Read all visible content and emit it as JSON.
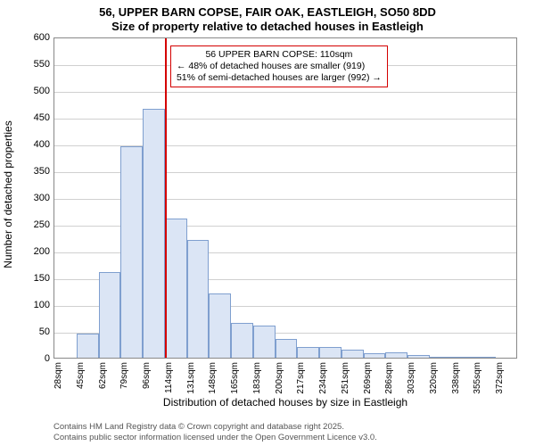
{
  "title_line1": "56, UPPER BARN COPSE, FAIR OAK, EASTLEIGH, SO50 8DD",
  "title_line2": "Size of property relative to detached houses in Eastleigh",
  "yaxis_title": "Number of detached properties",
  "xaxis_title": "Distribution of detached houses by size in Eastleigh",
  "attribution_line1": "Contains HM Land Registry data © Crown copyright and database right 2025.",
  "attribution_line2": "Contains public sector information licensed under the Open Government Licence v3.0.",
  "chart": {
    "type": "histogram",
    "ylim_max": 600,
    "ytick_step": 50,
    "grid_color": "#d0d0d0",
    "bar_fill": "#dbe5f5",
    "bar_border": "#7f9fcf",
    "bar_border_width": 1,
    "plot_border_color": "#888888",
    "marker_color": "#d40000",
    "annotation_border": "#d40000",
    "x_labels": [
      "28sqm",
      "45sqm",
      "62sqm",
      "79sqm",
      "96sqm",
      "114sqm",
      "131sqm",
      "148sqm",
      "165sqm",
      "183sqm",
      "200sqm",
      "217sqm",
      "234sqm",
      "251sqm",
      "269sqm",
      "286sqm",
      "303sqm",
      "320sqm",
      "338sqm",
      "355sqm",
      "372sqm"
    ],
    "bars": [
      {
        "value": 0
      },
      {
        "value": 45
      },
      {
        "value": 160
      },
      {
        "value": 395
      },
      {
        "value": 465
      },
      {
        "value": 260
      },
      {
        "value": 220
      },
      {
        "value": 120
      },
      {
        "value": 65
      },
      {
        "value": 60
      },
      {
        "value": 35
      },
      {
        "value": 20
      },
      {
        "value": 20
      },
      {
        "value": 15
      },
      {
        "value": 8
      },
      {
        "value": 10
      },
      {
        "value": 5
      },
      {
        "value": 2
      },
      {
        "value": 2
      },
      {
        "value": 2
      },
      {
        "value": 0
      }
    ],
    "marker_position_sqm": 110,
    "x_min_sqm": 28,
    "x_max_sqm": 372
  },
  "annotation": {
    "line1": "56 UPPER BARN COPSE: 110sqm",
    "line2": "← 48% of detached houses are smaller (919)",
    "line3": "51% of semi-detached houses are larger (992) →"
  }
}
